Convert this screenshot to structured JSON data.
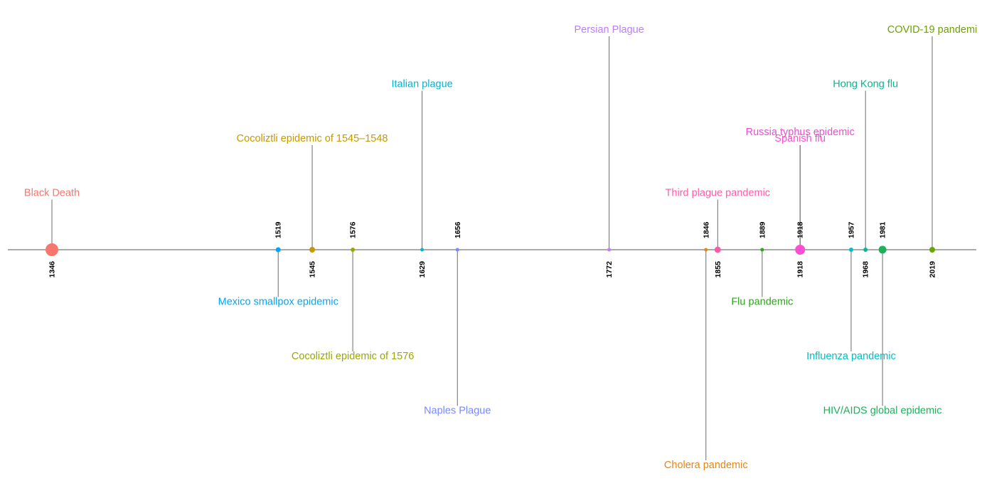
{
  "chart_data": {
    "type": "timeline",
    "title": "",
    "xlabel": "",
    "ylabel": "",
    "xlim": [
      1323,
      2042
    ],
    "grid": false,
    "legend": "none",
    "events": [
      {
        "year": 1346,
        "name": "Black Death",
        "color": "#F8766D",
        "side": "above",
        "level": 1,
        "size": 9,
        "year_label_side": "below"
      },
      {
        "year": 1519,
        "name": "Mexico smallpox epidemic",
        "color": "#00A5FF",
        "side": "below",
        "level": 1,
        "size": 3.5,
        "year_label_side": "above"
      },
      {
        "year": 1545,
        "name": "Cocoliztli epidemic of 1545–1548",
        "color": "#C49A00",
        "side": "above",
        "level": 2,
        "size": 4,
        "year_label_side": "below"
      },
      {
        "year": 1576,
        "name": "Cocoliztli epidemic of 1576",
        "color": "#99A800",
        "side": "below",
        "level": 2,
        "size": 3,
        "year_label_side": "above"
      },
      {
        "year": 1629,
        "name": "Italian plague",
        "color": "#00B5D0",
        "side": "above",
        "level": 3,
        "size": 2.5,
        "year_label_side": "below"
      },
      {
        "year": 1656,
        "name": "Naples Plague",
        "color": "#7A89FF",
        "side": "below",
        "level": 3,
        "size": 2.5,
        "year_label_side": "above"
      },
      {
        "year": 1772,
        "name": "Persian Plague",
        "color": "#BE7CFF",
        "side": "above",
        "level": 4,
        "size": 2.5,
        "year_label_side": "below"
      },
      {
        "year": 1846,
        "name": "Cholera pandemic",
        "color": "#E68613",
        "side": "below",
        "level": 4,
        "size": 2.5,
        "year_label_side": "above"
      },
      {
        "year": 1855,
        "name": "Third plague pandemic",
        "color": "#FF5CA8",
        "side": "above",
        "level": 1,
        "size": 4.5,
        "year_label_side": "below"
      },
      {
        "year": 1889,
        "name": "Flu pandemic",
        "color": "#2AA716",
        "side": "below",
        "level": 1,
        "size": 2.5,
        "year_label_side": "above"
      },
      {
        "year": 1918,
        "name": "Spanish flu",
        "color": "#FF4ED3",
        "side": "above",
        "level": 2,
        "size": 7,
        "year_label_side": "below"
      },
      {
        "year": 1918,
        "name": "Russia typhus epidemic",
        "color": "#E84FD0",
        "side": "above",
        "level": 2,
        "size": 2,
        "year_label_side": "above",
        "text_nudge": -9
      },
      {
        "year": 1957,
        "name": "Influenza pandemic",
        "color": "#00BFC4",
        "side": "below",
        "level": 2,
        "size": 3,
        "year_label_side": "above"
      },
      {
        "year": 1968,
        "name": "Hong Kong flu",
        "color": "#00BA92",
        "side": "above",
        "level": 3,
        "size": 3,
        "year_label_side": "below"
      },
      {
        "year": 1981,
        "name": "HIV/AIDS global epidemic",
        "color": "#1FB05A",
        "side": "below",
        "level": 3,
        "size": 5.5,
        "year_label_side": "above"
      },
      {
        "year": 2019,
        "name": "COVID-19 pandemi",
        "color": "#6BA300",
        "side": "above",
        "level": 4,
        "size": 4,
        "year_label_side": "below"
      }
    ]
  }
}
